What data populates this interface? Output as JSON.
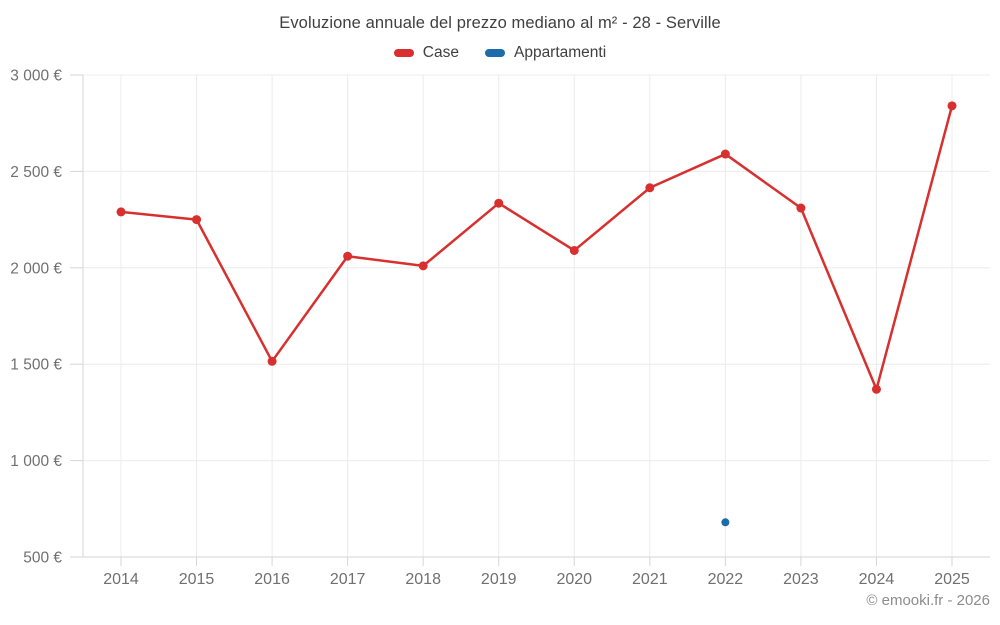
{
  "chart_data": {
    "type": "line",
    "title": "Evoluzione annuale del prezzo mediano al m² - 28 - Serville",
    "categories": [
      "2014",
      "2015",
      "2016",
      "2017",
      "2018",
      "2019",
      "2020",
      "2021",
      "2022",
      "2023",
      "2024",
      "2025"
    ],
    "series": [
      {
        "name": "Case",
        "color": "#d7302f",
        "values": [
          2290,
          2250,
          1515,
          2060,
          2010,
          2335,
          2090,
          2415,
          2590,
          2310,
          1370,
          2840
        ]
      },
      {
        "name": "Appartamenti",
        "color": "#1b6ca8",
        "values": [
          null,
          null,
          null,
          null,
          null,
          null,
          null,
          null,
          680,
          null,
          null,
          null
        ]
      }
    ],
    "y_axis": {
      "min": 500,
      "max": 3000,
      "step": 500,
      "tick_labels": [
        "500 €",
        "1 000 €",
        "1 500 €",
        "2 000 €",
        "2 500 €",
        "3 000 €"
      ],
      "unit": "€"
    },
    "legend_position": "top",
    "grid": true,
    "grid_color": "#ececec",
    "axis_color": "#d6d6d6",
    "tick_label_color": "#707070"
  },
  "footer": {
    "credit": "© emooki.fr - 2026"
  }
}
